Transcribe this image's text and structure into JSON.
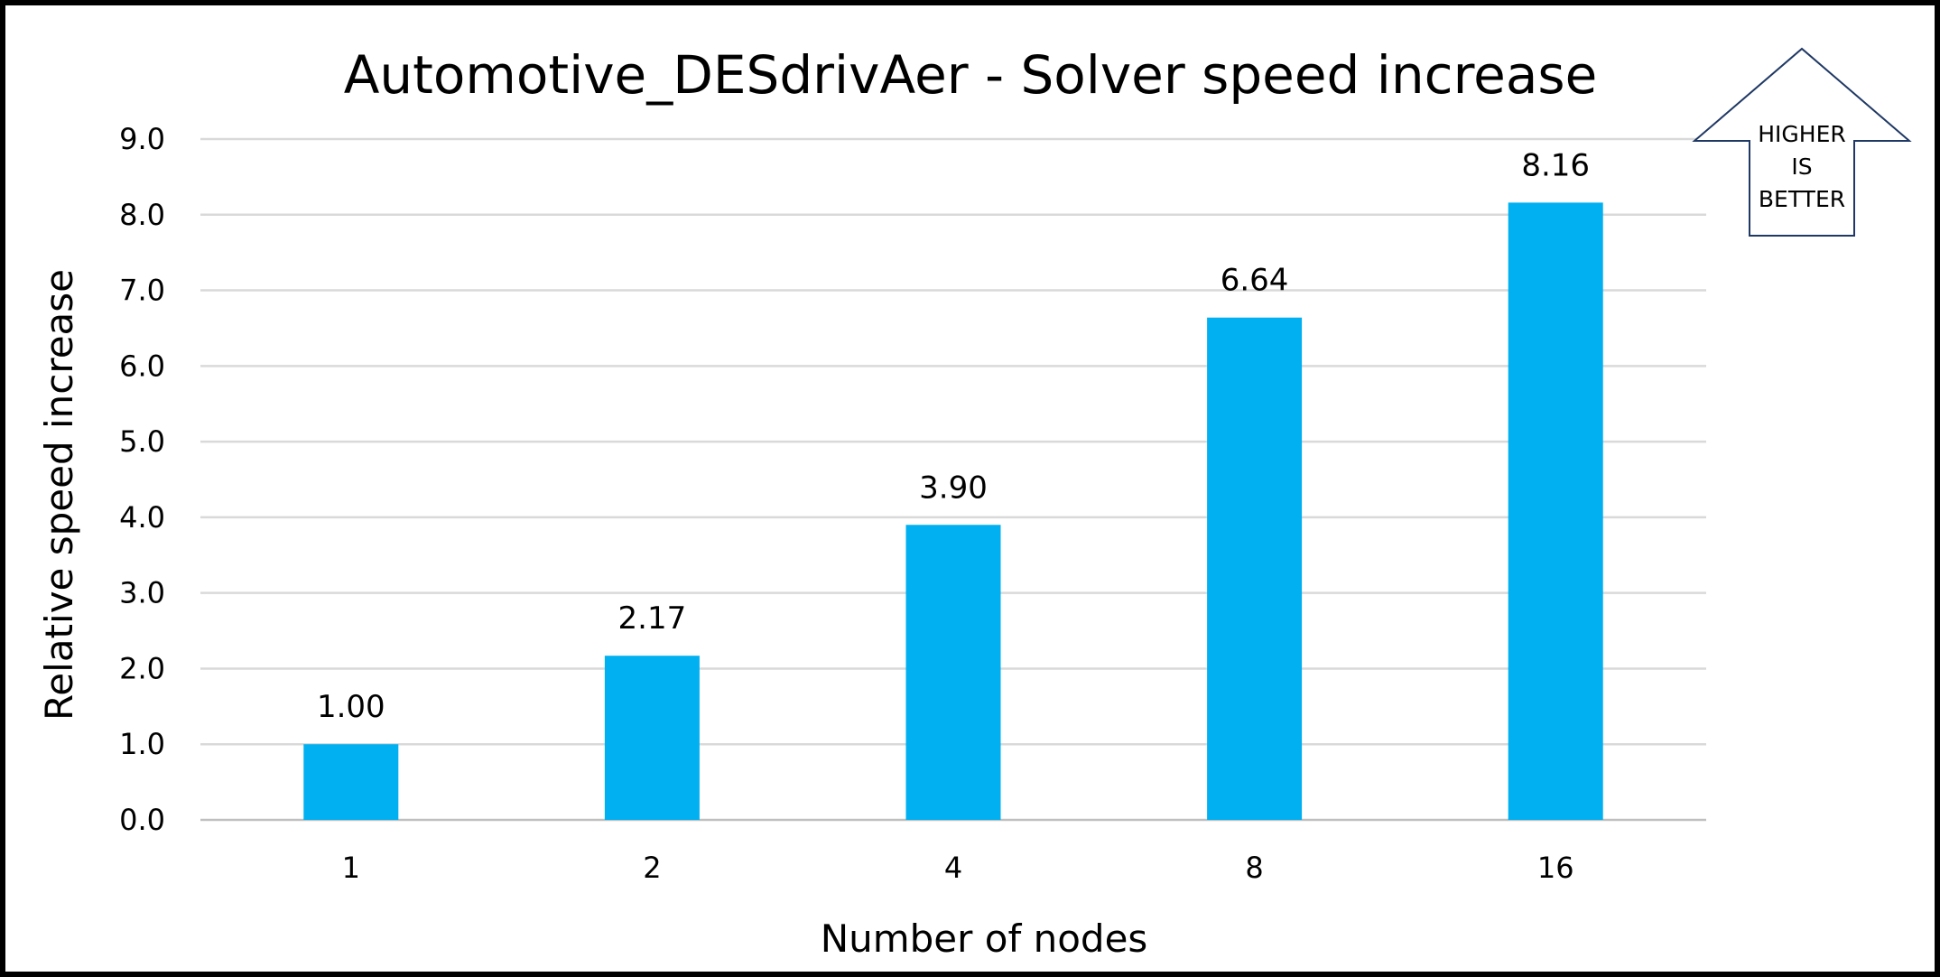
{
  "chart_data": {
    "type": "bar",
    "title": "Automotive_DESdrivAer - Solver speed increase",
    "xlabel": "Number of nodes",
    "ylabel": "Relative speed increase",
    "categories": [
      "1",
      "2",
      "4",
      "8",
      "16"
    ],
    "values": [
      1.0,
      2.17,
      3.9,
      6.64,
      8.16
    ],
    "data_labels": [
      "1.00",
      "2.17",
      "3.90",
      "6.64",
      "8.16"
    ],
    "ylim": [
      0,
      9
    ],
    "yticks": [
      "0.0",
      "1.0",
      "2.0",
      "3.0",
      "4.0",
      "5.0",
      "6.0",
      "7.0",
      "8.0",
      "9.0"
    ],
    "grid": true,
    "legend": "none",
    "bar_color": "#00B0F0"
  },
  "badge": {
    "lines": [
      "HIGHER",
      "IS",
      "BETTER"
    ],
    "outline_color": "#1F3864",
    "shape": "up-arrow"
  }
}
